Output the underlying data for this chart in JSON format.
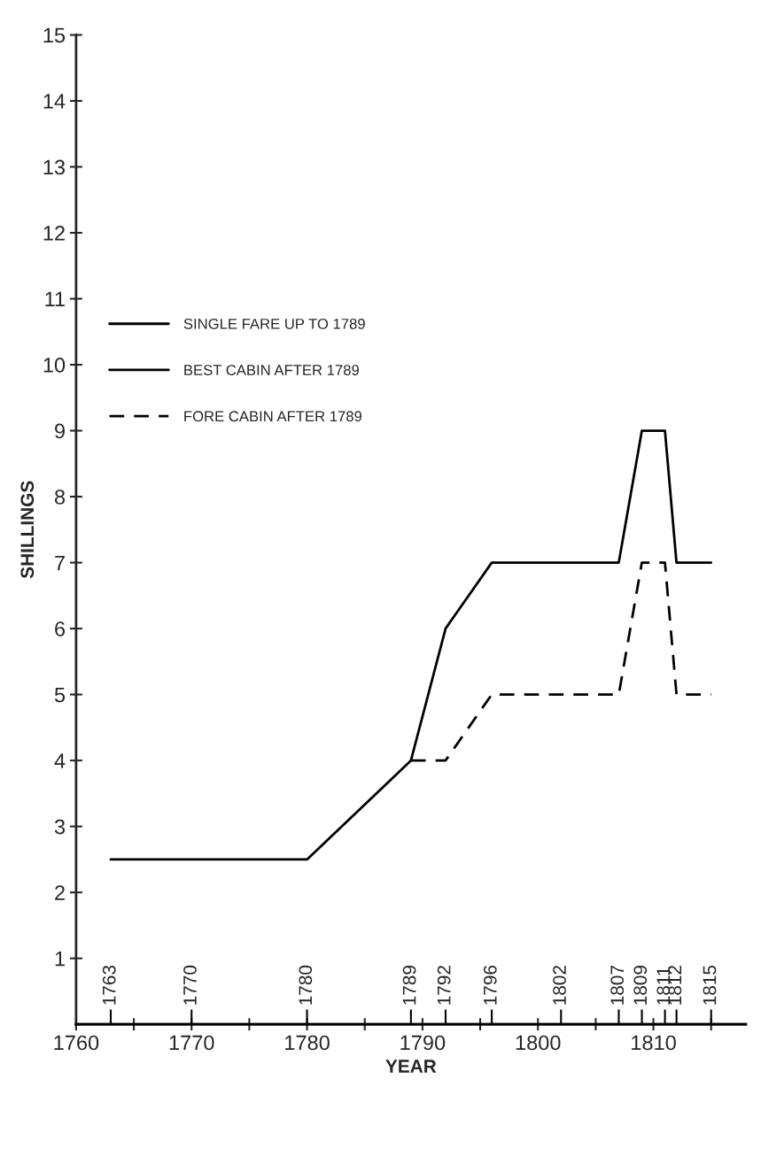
{
  "chart_data": {
    "type": "line",
    "xlabel": "YEAR",
    "ylabel": "SHILLINGS",
    "xlim": [
      1760,
      1818
    ],
    "ylim": [
      0,
      15
    ],
    "xticks": [
      1760,
      {
        "value": 1765,
        "label": null
      },
      1770,
      {
        "value": 1775,
        "label": null
      },
      1780,
      {
        "value": 1785,
        "label": null
      },
      1790,
      {
        "value": 1795,
        "label": null
      },
      1800,
      {
        "value": 1805,
        "label": null
      },
      1810,
      {
        "value": 1815,
        "label": null
      }
    ],
    "yticks": [
      1,
      2,
      3,
      4,
      5,
      6,
      7,
      8,
      9,
      10,
      11,
      12,
      13,
      14,
      15
    ],
    "grid": false,
    "legend": "left",
    "marker": "none",
    "series": [
      {
        "name": "SINGLE FARE UP TO 1789",
        "color": "#000000",
        "line_style": "solid",
        "x": [
          1763,
          1780,
          1789
        ],
        "values": [
          2.5,
          2.5,
          4
        ]
      },
      {
        "name": "BEST CABIN AFTER 1789",
        "color": "#000000",
        "line_style": "solid",
        "x": [
          1789,
          1792,
          1796,
          1807,
          1809,
          1811,
          1812,
          1815
        ],
        "values": [
          4,
          6,
          7,
          7,
          9,
          9,
          7,
          7
        ]
      },
      {
        "name": "FORE CABIN AFTER 1789",
        "color": "#000000",
        "line_style": "dashed",
        "x": [
          1789,
          1792,
          1796,
          1807,
          1809,
          1811,
          1812,
          1815
        ],
        "values": [
          4,
          4,
          5,
          5,
          7,
          7,
          5,
          5
        ]
      }
    ],
    "x2lim": [
      1760,
      1818
    ],
    "x2ticks": [
      1763,
      1770,
      1780,
      1789,
      1792,
      1796,
      1802,
      1807,
      1809,
      1811,
      1812,
      1815
    ]
  }
}
